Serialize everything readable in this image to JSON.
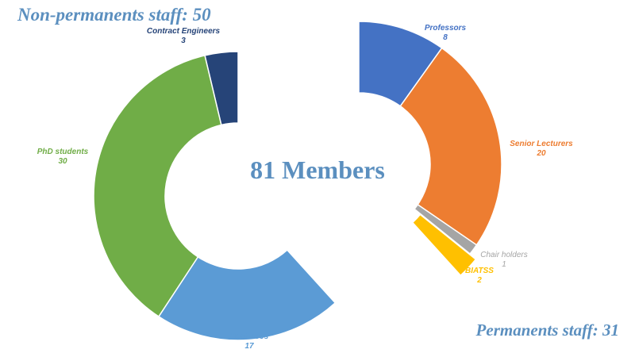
{
  "headings": {
    "non_permanent": "Non-permanents staff: 50",
    "permanent": "Permanents staff: 31",
    "center": "81 Members"
  },
  "chart_data": [
    {
      "type": "pie",
      "variant": "half-donut",
      "title": "Non-permanents staff: 50",
      "slices": [
        {
          "label": "Contract Engineers",
          "value": 3,
          "color": "#264478"
        },
        {
          "label": "PhD students",
          "value": 30,
          "color": "#70ad47"
        },
        {
          "label": "Post-docs",
          "value": 17,
          "color": "#5b9bd5"
        }
      ]
    },
    {
      "type": "pie",
      "variant": "half-donut",
      "title": "Permanents staff: 31",
      "slices": [
        {
          "label": "Professors",
          "value": 8,
          "color": "#4472c4"
        },
        {
          "label": "Senior Lecturers",
          "value": 20,
          "color": "#ed7d31"
        },
        {
          "label": "Chair holders",
          "value": 1,
          "color": "#a5a5a5"
        },
        {
          "label": "BIATSS",
          "value": 2,
          "color": "#ffc000"
        }
      ]
    }
  ]
}
